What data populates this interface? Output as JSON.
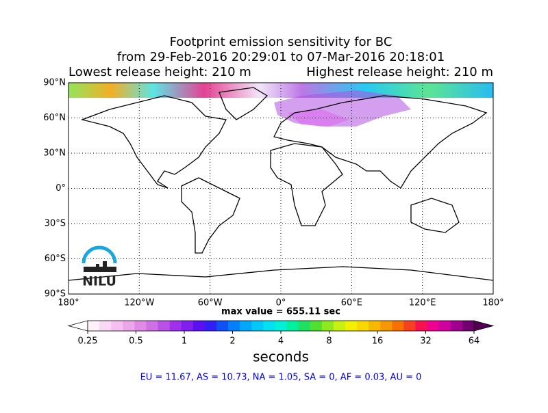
{
  "map": {
    "title": "Footprint emission sensitivity for BC",
    "subtitle": "from 29-Feb-2016 20:29:01 to 07-Mar-2016 20:18:01",
    "lowest_release": "Lowest release height: 210 m",
    "highest_release": "Highest release height: 210 m",
    "xlim": [
      -180,
      180
    ],
    "ylim": [
      -90,
      90
    ],
    "xticks": [
      {
        "value": -180,
        "label": "180°"
      },
      {
        "value": -120,
        "label": "120°W"
      },
      {
        "value": -60,
        "label": "60°W"
      },
      {
        "value": 0,
        "label": "0°"
      },
      {
        "value": 60,
        "label": "60°E"
      },
      {
        "value": 120,
        "label": "120°E"
      },
      {
        "value": 180,
        "label": "180°"
      }
    ],
    "yticks": [
      {
        "value": 90,
        "label": "90°N"
      },
      {
        "value": 60,
        "label": "60°N"
      },
      {
        "value": 30,
        "label": "30°N"
      },
      {
        "value": 0,
        "label": "0°"
      },
      {
        "value": -30,
        "label": "30°S"
      },
      {
        "value": -60,
        "label": "60°S"
      },
      {
        "value": -90,
        "label": "90°S"
      }
    ],
    "grid": true,
    "max_value": "max value = 655.11 sec",
    "logo": "NILU",
    "colorbar": {
      "log": true,
      "lim": [
        0.25,
        64
      ],
      "ticks": [
        0.25,
        0.5,
        1,
        2,
        4,
        8,
        16,
        32,
        64
      ],
      "label": "seconds",
      "colors": [
        "#fff0fa",
        "#fbd8f5",
        "#f5c0f0",
        "#eda6ea",
        "#e08ae6",
        "#d070e6",
        "#bb50e8",
        "#a030ea",
        "#8020ee",
        "#5a10f0",
        "#3020f5",
        "#1050f8",
        "#0080fa",
        "#00a8fb",
        "#00c8f8",
        "#00e0f0",
        "#00f0d8",
        "#00f0a0",
        "#20e060",
        "#50e030",
        "#90e820",
        "#c8f010",
        "#f0f000",
        "#f8d800",
        "#f8b800",
        "#f89800",
        "#f87000",
        "#f84020",
        "#f81050",
        "#f00090",
        "#d000a0",
        "#a00090",
        "#700070"
      ],
      "under_color": "#ffffff",
      "over_color": "#500050"
    },
    "regions": "EU = 11.67,  AS = 10.73,  NA = 1.05,  SA = 0,  AF = 0.03,  AU = 0"
  }
}
